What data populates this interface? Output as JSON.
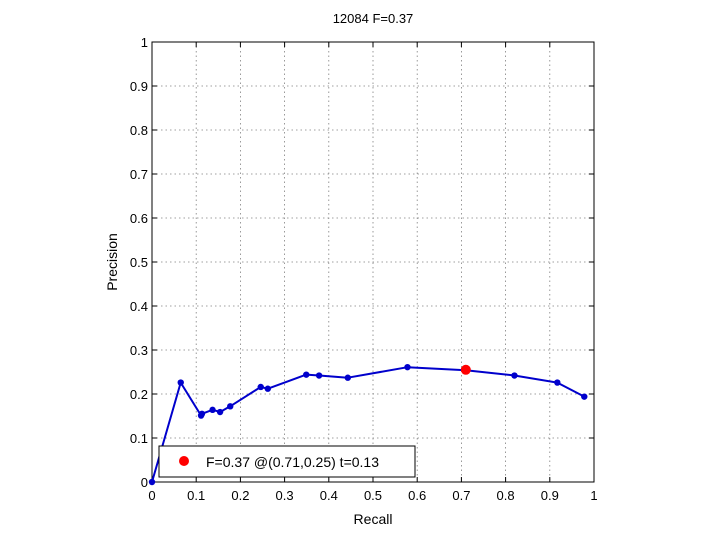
{
  "chart_data": {
    "type": "line",
    "title": "12084 F=0.37",
    "xlabel": "Recall",
    "ylabel": "Precision",
    "xlim": [
      0,
      1
    ],
    "ylim": [
      0,
      1
    ],
    "xticks": [
      "0",
      "0.1",
      "0.2",
      "0.3",
      "0.4",
      "0.5",
      "0.6",
      "0.7",
      "0.8",
      "0.9",
      "1"
    ],
    "yticks": [
      "0",
      "0.1",
      "0.2",
      "0.3",
      "0.4",
      "0.5",
      "0.6",
      "0.7",
      "0.8",
      "0.9",
      "1"
    ],
    "grid": true,
    "series": [
      {
        "color": "#0000cc",
        "x": [
          0.0,
          0.065,
          0.111,
          0.113,
          0.137,
          0.154,
          0.177,
          0.246,
          0.262,
          0.349,
          0.378,
          0.443,
          0.578,
          0.71,
          0.82,
          0.917,
          0.978
        ],
        "y": [
          0.0,
          0.226,
          0.151,
          0.155,
          0.164,
          0.159,
          0.172,
          0.216,
          0.212,
          0.244,
          0.242,
          0.237,
          0.261,
          0.254,
          0.242,
          0.226,
          0.194
        ]
      }
    ],
    "highlight": {
      "x": 0.71,
      "y": 0.255,
      "color": "#ff0000"
    },
    "legend": {
      "placement": "bottom-left",
      "text": "F=0.37 @(0.71,0.25) t=0.13"
    }
  }
}
